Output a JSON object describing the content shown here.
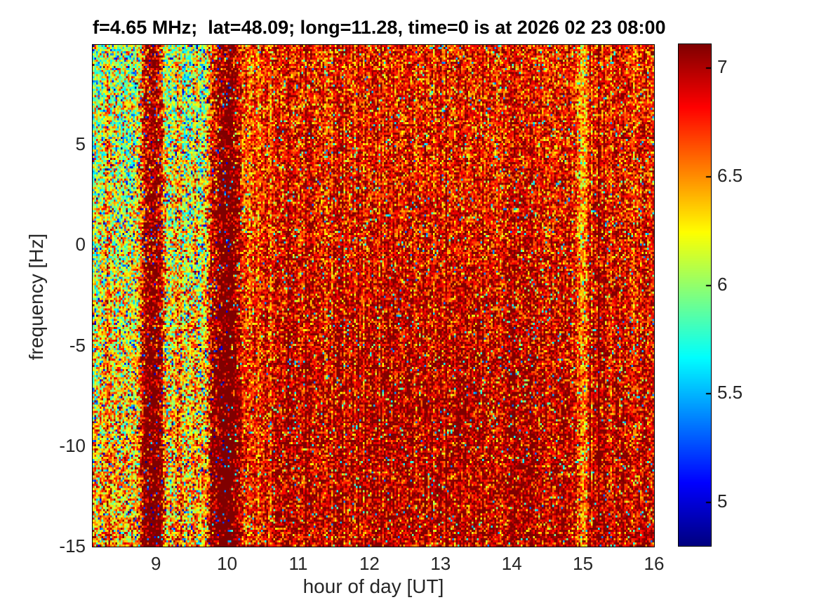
{
  "chart_data": {
    "type": "heatmap",
    "title": "f=4.65 MHz;  lat=48.09; long=11.28, time=0 is at 2026 02 23 08:00",
    "xlabel": "hour of day [UT]",
    "ylabel": "frequency [Hz]",
    "x_range": [
      8.11,
      16.0
    ],
    "y_range": [
      -15,
      9.97
    ],
    "x_ticks": [
      9,
      10,
      11,
      12,
      13,
      14,
      15,
      16
    ],
    "y_ticks": [
      5,
      0,
      -5,
      -10,
      -15
    ],
    "grid": false,
    "legend": "none",
    "colors": {
      "background": "#ffffff",
      "axis_text": "#262626",
      "title_text": "#000000",
      "colormap_low": "#000080",
      "colormap_high": "#800000"
    },
    "colorbar": {
      "position": "right",
      "range": [
        4.8,
        7.11
      ],
      "ticks": [
        7,
        6.5,
        6,
        5.5,
        5
      ],
      "colormap": "jet"
    },
    "field": {
      "description": "Noisy ionospheric Doppler spectrogram: cyan-green speckle before ~10 UT with two dark-red vertical bands near 8.95 and 9.93 UT, then orange/dark-red speckle with vertical striations for 10-16 UT, darkening toward the bottom and around 12-14.5 UT.",
      "noise_seed": 20260223,
      "grid": {
        "nx": 320,
        "ny": 240
      },
      "transition": {
        "start": 9.88,
        "end": 10.18
      },
      "left_region": {
        "base_top": 5.95,
        "base_bottom": 6.38,
        "noise_std": 0.36,
        "outlier_low_frac": 0.05,
        "outlier_low_range": [
          4.82,
          5.6
        ],
        "outlier_high_frac": 0.06,
        "outlier_high_range": [
          6.55,
          7.1
        ]
      },
      "right_region": {
        "base": 6.78,
        "noise_std": 0.27,
        "column_noise_std": 0.09,
        "column_dark_frac": 0.12,
        "column_dark_amount": 0.16,
        "outlier_low_frac": 0.04,
        "outlier_low_range": [
          5.3,
          6.35
        ],
        "bottom_gradient": 0.14,
        "blob": {
          "hour": 13.0,
          "freq": -8.0,
          "hour_sigma": 2.3,
          "freq_sigma": 7.0,
          "amount": 0.1
        }
      },
      "dark_bands": [
        {
          "center": 8.95,
          "half_width": 0.17,
          "amount": 1.0
        },
        {
          "center": 9.93,
          "half_width": 0.2,
          "amount": 0.95
        }
      ],
      "minor_bands": [
        {
          "center": 8.33,
          "half_width": 0.05,
          "amount": 0.3
        },
        {
          "center": 9.32,
          "half_width": 0.05,
          "amount": 0.35
        },
        {
          "center": 9.55,
          "half_width": 0.04,
          "amount": 0.25
        }
      ],
      "light_bands": [
        {
          "center": 15.0,
          "half_width": 0.09,
          "amount": -0.3
        },
        {
          "center": 10.38,
          "half_width": 0.07,
          "amount": -0.22
        },
        {
          "center": 10.62,
          "half_width": 0.05,
          "amount": -0.18
        }
      ],
      "value_clamp": [
        4.8,
        7.115
      ]
    }
  }
}
